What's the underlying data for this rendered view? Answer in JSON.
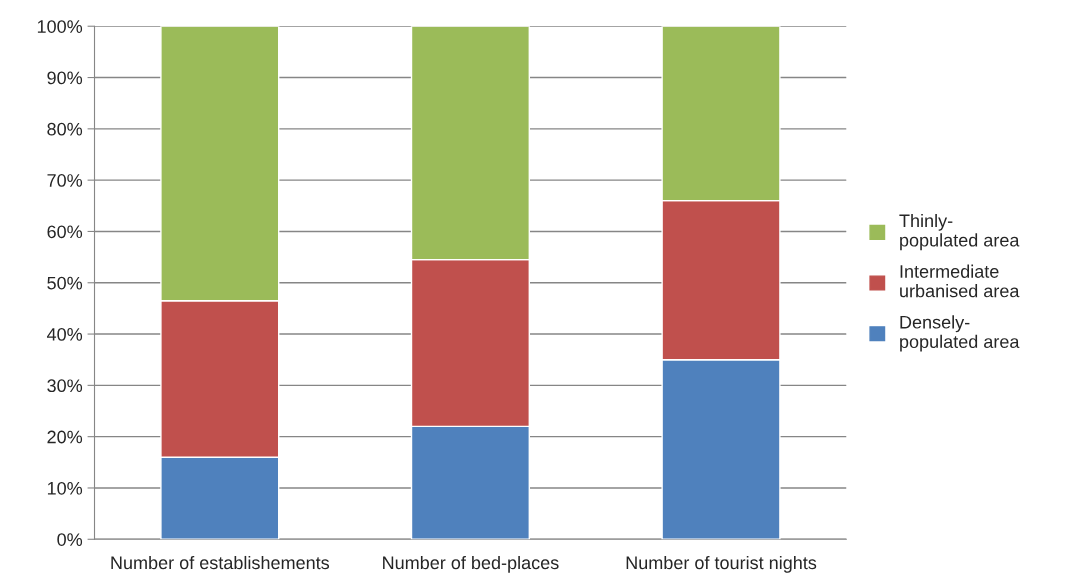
{
  "chart_data": {
    "type": "bar",
    "stacked": true,
    "categories": [
      "Number of establishements",
      "Number of bed-places",
      "Number of tourist nights"
    ],
    "series": [
      {
        "name": "Densely-\npopulated area",
        "color": "#4f81bd",
        "values": [
          16,
          22,
          35
        ]
      },
      {
        "name": "Intermediate\nurbanised area",
        "color": "#c0504d",
        "values": [
          30.5,
          32.5,
          31
        ]
      },
      {
        "name": "Thinly-\npopulated area",
        "color": "#9bbb59",
        "values": [
          53.5,
          45.5,
          34
        ]
      }
    ],
    "ylim": [
      0,
      100
    ],
    "yticks": [
      {
        "value": 0,
        "label": "0%"
      },
      {
        "value": 10,
        "label": "10%"
      },
      {
        "value": 20,
        "label": "20%"
      },
      {
        "value": 30,
        "label": "30%"
      },
      {
        "value": 40,
        "label": "40%"
      },
      {
        "value": 50,
        "label": "50%"
      },
      {
        "value": 60,
        "label": "60%"
      },
      {
        "value": 70,
        "label": "70%"
      },
      {
        "value": 80,
        "label": "80%"
      },
      {
        "value": 90,
        "label": "90%"
      },
      {
        "value": 100,
        "label": "100%"
      }
    ],
    "grid": "y",
    "legend": "right"
  }
}
